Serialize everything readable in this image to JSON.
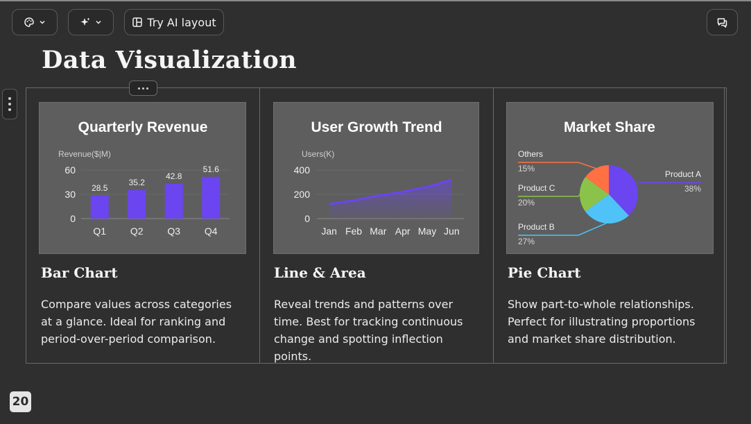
{
  "toolbar": {
    "layout_label": "Try AI layout"
  },
  "slide": {
    "title": "Data Visualization",
    "page_number": "20",
    "cards": [
      {
        "heading": "Bar Chart",
        "description": "Compare values across categories at a glance. Ideal for ranking and period-over-period comparison."
      },
      {
        "heading": "Line & Area",
        "description": "Reveal trends and patterns over time. Best for tracking continuous change and spotting inflection points."
      },
      {
        "heading": "Pie Chart",
        "description": "Show part-to-whole relationships. Perfect for illustrating proportions and market share distribution."
      }
    ]
  },
  "colors": {
    "bar": "#6a45f0",
    "line": "#6a45f0",
    "pie_a": "#6a45f0",
    "pie_b": "#4fc3f7",
    "pie_c": "#8bc34a",
    "pie_others": "#ff7043"
  },
  "chart_data": [
    {
      "type": "bar",
      "title": "Quarterly Revenue",
      "ylabel": "Revenue($|M)",
      "categories": [
        "Q1",
        "Q2",
        "Q3",
        "Q4"
      ],
      "values": [
        28.5,
        35.2,
        42.8,
        51.6
      ],
      "yticks": [
        0,
        30,
        60
      ],
      "ylim": [
        0,
        60
      ]
    },
    {
      "type": "area",
      "title": "User Growth Trend",
      "ylabel": "Users(K)",
      "categories": [
        "Jan",
        "Feb",
        "Mar",
        "Apr",
        "May",
        "Jun"
      ],
      "values": [
        120,
        150,
        190,
        220,
        260,
        320
      ],
      "yticks": [
        0,
        200,
        400
      ],
      "ylim": [
        0,
        400
      ]
    },
    {
      "type": "pie",
      "title": "Market Share",
      "slices": [
        {
          "name": "Product A",
          "value": 38,
          "label": "38%"
        },
        {
          "name": "Product B",
          "value": 27,
          "label": "27%"
        },
        {
          "name": "Product C",
          "value": 20,
          "label": "20%"
        },
        {
          "name": "Others",
          "value": 15,
          "label": "15%"
        }
      ]
    }
  ]
}
